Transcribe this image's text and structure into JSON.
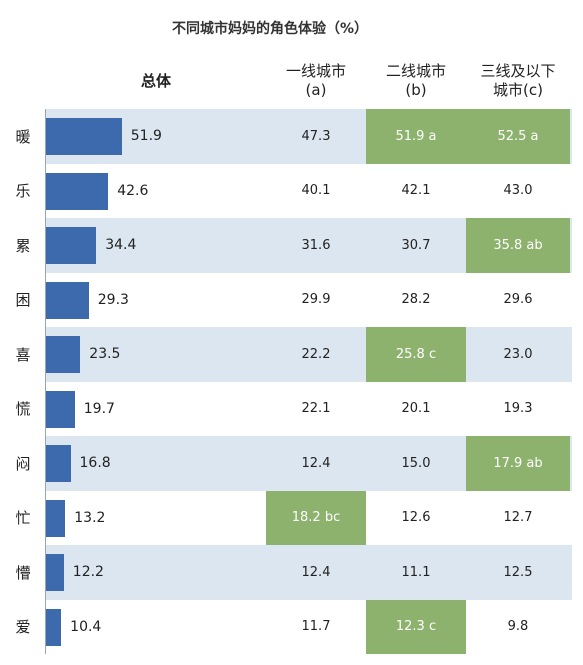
{
  "chart_data": {
    "type": "table",
    "title": "不同城市妈妈的角色体验（%）",
    "headers": {
      "overall": "总体",
      "a": [
        "一线城市",
        "(a)"
      ],
      "b": [
        "二线城市",
        "(b)"
      ],
      "c": [
        "三线及以下",
        "城市(c)"
      ]
    },
    "categories": [
      "暖",
      "乐",
      "累",
      "困",
      "喜",
      "慌",
      "闷",
      "忙",
      "懵",
      "爱"
    ],
    "overall_values": [
      51.9,
      42.6,
      34.4,
      29.3,
      23.5,
      19.7,
      16.8,
      13.2,
      12.2,
      10.4
    ],
    "overall_labels": [
      "51.9",
      "42.6",
      "34.4",
      "29.3",
      "23.5",
      "19.7",
      "16.8",
      "13.2",
      "12.2",
      "10.4"
    ],
    "city_a": [
      "47.3",
      "40.1",
      "31.6",
      "29.9",
      "22.2",
      "22.1",
      "12.4",
      "18.2 bc",
      "12.4",
      "11.7"
    ],
    "city_b": [
      "51.9 a",
      "42.1",
      "30.7",
      "28.2",
      "25.8 c",
      "20.1",
      "15.0",
      "12.6",
      "11.1",
      "12.3 c"
    ],
    "city_c": [
      "52.5 a",
      "43.0",
      "35.8 ab",
      "29.6",
      "23.0",
      "19.3",
      "17.9 ab",
      "12.7",
      "12.5",
      "9.8"
    ],
    "highlight_color": "#8db26e",
    "bar_color": "#3c6aac",
    "band_color": "#dce6f1"
  }
}
